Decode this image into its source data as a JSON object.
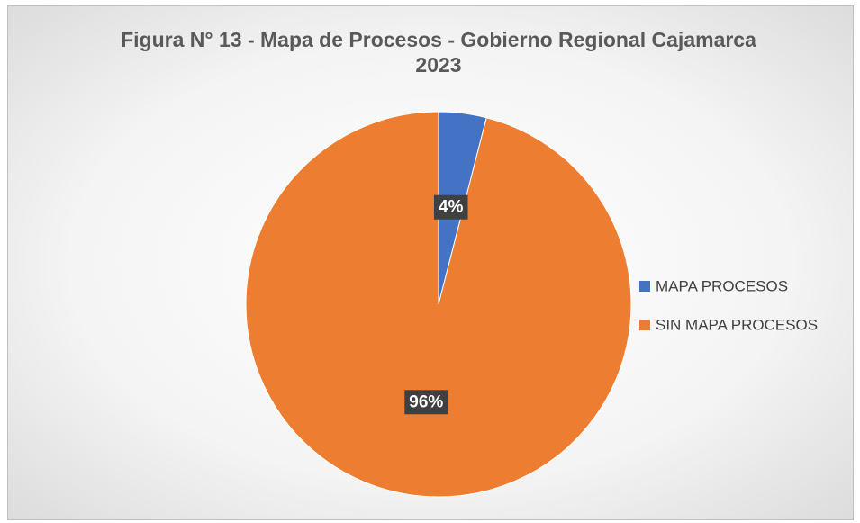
{
  "chart_data": {
    "type": "pie",
    "title": "Figura N° 13 - Mapa de Procesos - Gobierno Regional Cajamarca 2023",
    "categories": [
      "MAPA PROCESOS",
      "SIN MAPA PROCESOS"
    ],
    "values": [
      4,
      96
    ],
    "value_labels": [
      "4%",
      "96%"
    ],
    "colors": [
      "#4472c4",
      "#ed7d31"
    ],
    "legend": "right"
  }
}
